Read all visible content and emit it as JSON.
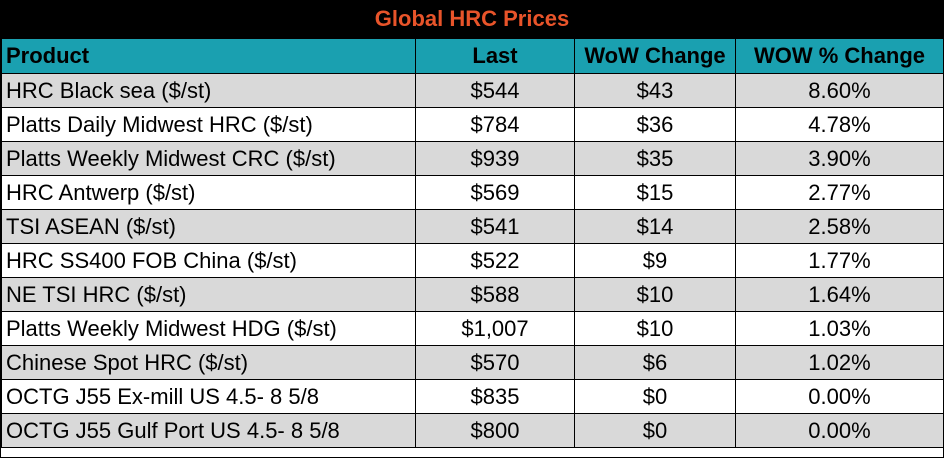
{
  "title": "Global HRC Prices",
  "headers": {
    "product": "Product",
    "last": "Last",
    "wow_change": "WoW Change",
    "wow_pct_change": "WOW % Change"
  },
  "rows": [
    {
      "product": "HRC Black sea ($/st)",
      "last": "$544",
      "wow_change": "$43",
      "wow_pct_change": "8.60%"
    },
    {
      "product": "Platts Daily Midwest HRC ($/st)",
      "last": "$784",
      "wow_change": "$36",
      "wow_pct_change": "4.78%"
    },
    {
      "product": "Platts Weekly Midwest CRC ($/st)",
      "last": "$939",
      "wow_change": "$35",
      "wow_pct_change": "3.90%"
    },
    {
      "product": "HRC Antwerp ($/st)",
      "last": "$569",
      "wow_change": "$15",
      "wow_pct_change": "2.77%"
    },
    {
      "product": "TSI ASEAN ($/st)",
      "last": "$541",
      "wow_change": "$14",
      "wow_pct_change": "2.58%"
    },
    {
      "product": "HRC SS400 FOB China ($/st)",
      "last": "$522",
      "wow_change": "$9",
      "wow_pct_change": "1.77%"
    },
    {
      "product": "NE TSI HRC ($/st)",
      "last": "$588",
      "wow_change": "$10",
      "wow_pct_change": "1.64%"
    },
    {
      "product": "Platts Weekly Midwest HDG ($/st)",
      "last": "$1,007",
      "wow_change": "$10",
      "wow_pct_change": "1.03%"
    },
    {
      "product": "Chinese Spot HRC ($/st)",
      "last": "$570",
      "wow_change": "$6",
      "wow_pct_change": "1.02%"
    },
    {
      "product": "OCTG J55 Ex-mill US 4.5- 8 5/8",
      "last": "$835",
      "wow_change": "$0",
      "wow_pct_change": "0.00%"
    },
    {
      "product": "OCTG J55 Gulf Port US 4.5- 8 5/8",
      "last": "$800",
      "wow_change": "$0",
      "wow_pct_change": "0.00%"
    }
  ],
  "colors": {
    "title_bg": "#000000",
    "title_text": "#e8542a",
    "header_bg": "#1aa0b0",
    "row_shade": "#d9d9d9",
    "row_plain": "#ffffff"
  }
}
